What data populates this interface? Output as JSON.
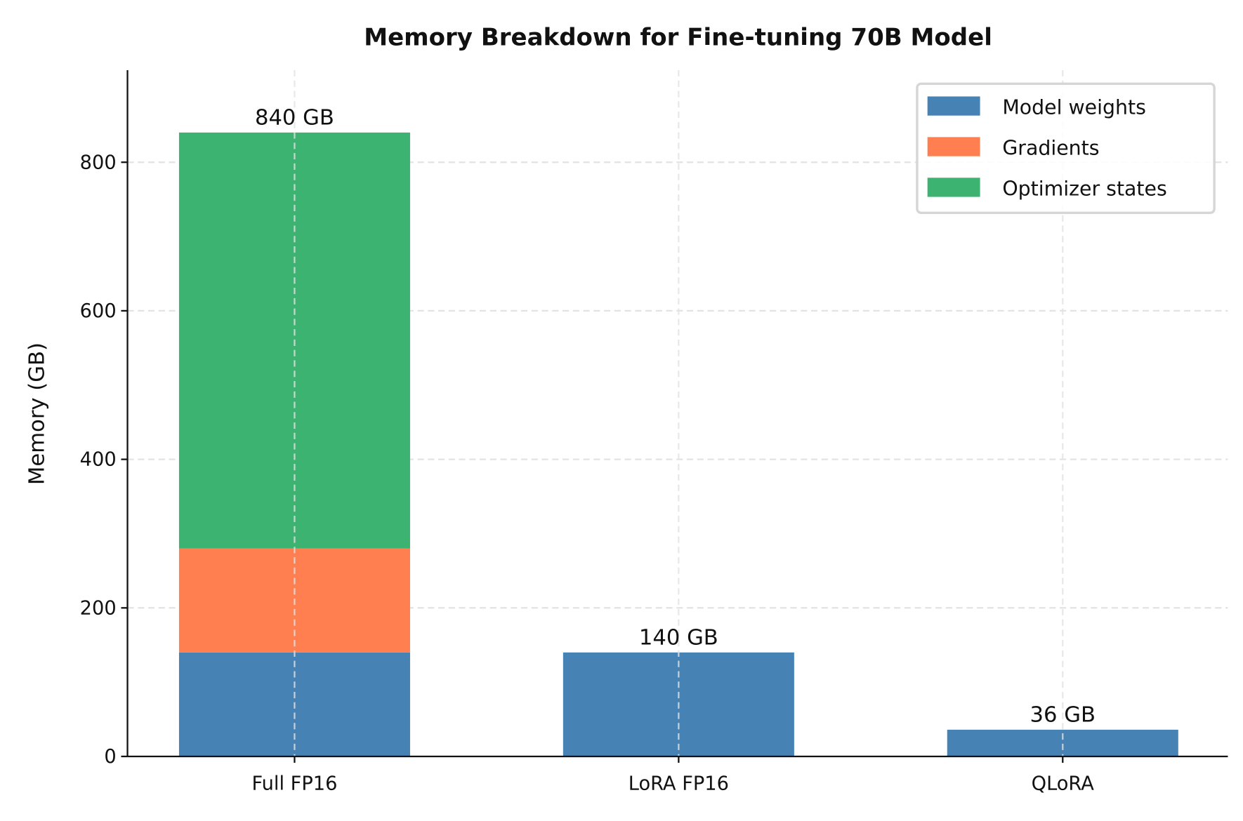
{
  "chart_data": {
    "type": "bar",
    "stacked": true,
    "title": "Memory Breakdown for Fine-tuning 70B Model",
    "xlabel": "",
    "ylabel": "Memory (GB)",
    "categories": [
      "Full FP16",
      "LoRA FP16",
      "QLoRA"
    ],
    "series": [
      {
        "name": "Model weights",
        "values": [
          140,
          140,
          36
        ],
        "color": "#4682B4"
      },
      {
        "name": "Gradients",
        "values": [
          140,
          0,
          0
        ],
        "color": "#FF7F50"
      },
      {
        "name": "Optimizer states",
        "values": [
          560,
          0,
          0
        ],
        "color": "#3CB371"
      }
    ],
    "totals_labels": [
      "840 GB",
      "140 GB",
      "36 GB"
    ],
    "ylim": [
      0,
      924
    ],
    "yticks": [
      0,
      200,
      400,
      600,
      800
    ],
    "ytick_labels": [
      "0",
      "200",
      "400",
      "600",
      "800"
    ],
    "grid": true,
    "legend_placement": "top-right"
  }
}
